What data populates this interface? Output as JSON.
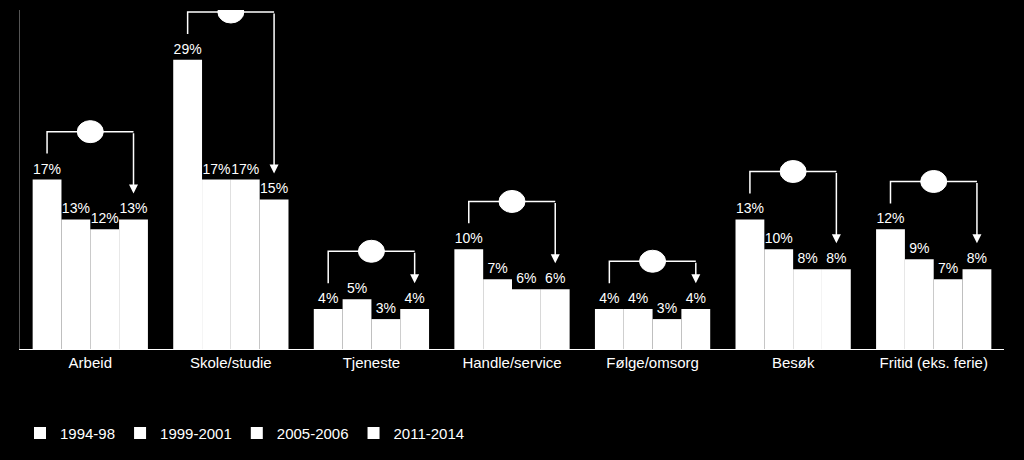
{
  "chart_data": {
    "type": "bar",
    "categories": [
      "Arbeid",
      "Skole/studie",
      "Tjeneste",
      "Handle/service",
      "Følge/omsorg",
      "Besøk",
      "Fritid (eks. ferie)"
    ],
    "series": [
      {
        "name": "1994-98",
        "color": "#ffffff",
        "values": [
          17,
          29,
          4,
          10,
          4,
          13,
          12
        ],
        "value_labels": [
          "17%",
          "29%",
          "4%",
          "10%",
          "4%",
          "13%",
          "12%"
        ]
      },
      {
        "name": "1999-2001",
        "color": "#ffffff",
        "values": [
          13,
          17,
          5,
          7,
          4,
          10,
          9
        ],
        "value_labels": [
          "13%",
          "17%",
          "5%",
          "7%",
          "4%",
          "10%",
          "9%"
        ]
      },
      {
        "name": "2005-2006",
        "color": "#ffffff",
        "values": [
          12,
          17,
          3,
          6,
          3,
          8,
          7
        ],
        "value_labels": [
          "12%",
          "17%",
          "3%",
          "6%",
          "3%",
          "8%",
          "7%"
        ]
      },
      {
        "name": "2011-2014",
        "color": "#ffffff",
        "values": [
          13,
          15,
          4,
          6,
          4,
          8,
          8
        ],
        "value_labels": [
          "13%",
          "15%",
          "4%",
          "6%",
          "4%",
          "8%",
          "8%"
        ]
      }
    ],
    "ylim": [
      0,
      34
    ],
    "data_labels": true,
    "tick_labels": "x",
    "legend": "bottom",
    "grid": false
  }
}
